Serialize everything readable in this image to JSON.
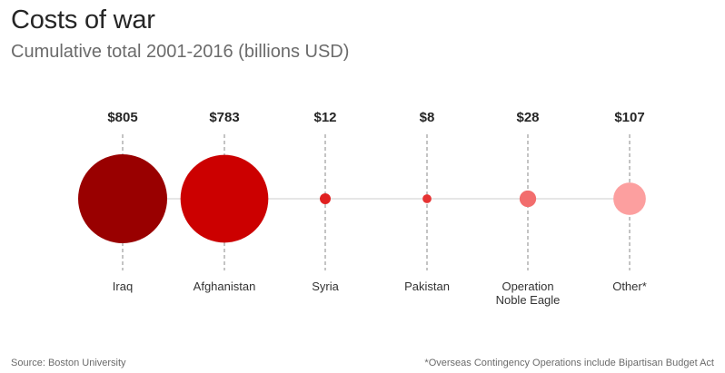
{
  "title": "Costs of war",
  "subtitle": "Cumulative total 2001-2016 (billions USD)",
  "source": "Source: Boston University",
  "footnote": "*Overseas Contingency Operations include Bipartisan Budget Act",
  "chart_data": {
    "type": "bubble",
    "title": "Costs of war",
    "subtitle": "Cumulative total 2001-2016 (billions USD)",
    "categories": [
      "Iraq",
      "Afghanistan",
      "Syria",
      "Pakistan",
      "Operation\nNoble Eagle",
      "Other*"
    ],
    "values": [
      805,
      783,
      12,
      8,
      28,
      107
    ],
    "value_labels": [
      "$805",
      "$783",
      "$12",
      "$8",
      "$28",
      "$107"
    ],
    "colors": [
      "#990000",
      "#cc0000",
      "#e02020",
      "#e63333",
      "#f26d6d",
      "#fc9f9f"
    ],
    "unit": "billions USD",
    "connector_color": "#cccccc",
    "guide_color": "#888888"
  }
}
